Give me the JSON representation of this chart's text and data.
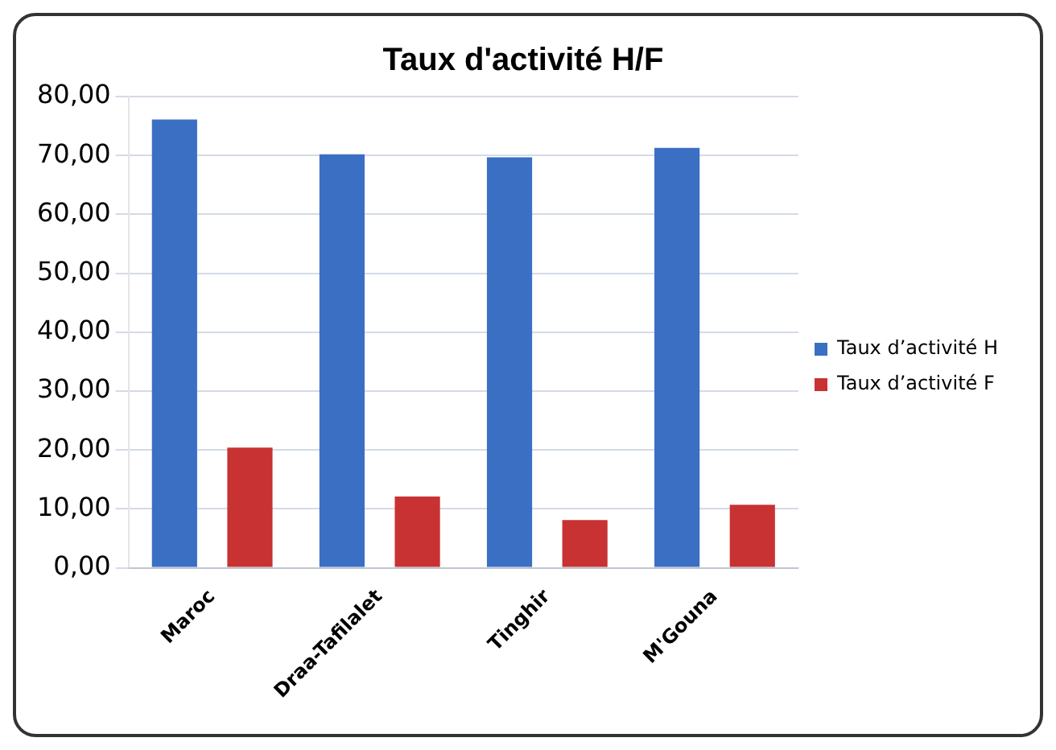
{
  "chart_data": {
    "type": "bar",
    "title": "Taux d'activité H/F",
    "categories": [
      "Maroc",
      "Draa-Tafilalet",
      "Tinghir",
      "M'Gouna"
    ],
    "series": [
      {
        "name": "Taux d’activité H",
        "color": "#3a6fc4",
        "values": [
          76.1,
          70.2,
          69.7,
          71.3
        ]
      },
      {
        "name": "Taux d’activité F",
        "color": "#c83232",
        "values": [
          20.4,
          12.1,
          8.1,
          10.7
        ]
      }
    ],
    "ylim": [
      0,
      80
    ],
    "yticks": [
      {
        "value": 0,
        "label": "0,00"
      },
      {
        "value": 10,
        "label": "10,00"
      },
      {
        "value": 20,
        "label": "20,00"
      },
      {
        "value": 30,
        "label": "30,00"
      },
      {
        "value": 40,
        "label": "40,00"
      },
      {
        "value": 50,
        "label": "50,00"
      },
      {
        "value": 60,
        "label": "60,00"
      },
      {
        "value": 70,
        "label": "70,00"
      },
      {
        "value": 80,
        "label": "80,00"
      }
    ],
    "grid": "y",
    "legend": "right"
  }
}
